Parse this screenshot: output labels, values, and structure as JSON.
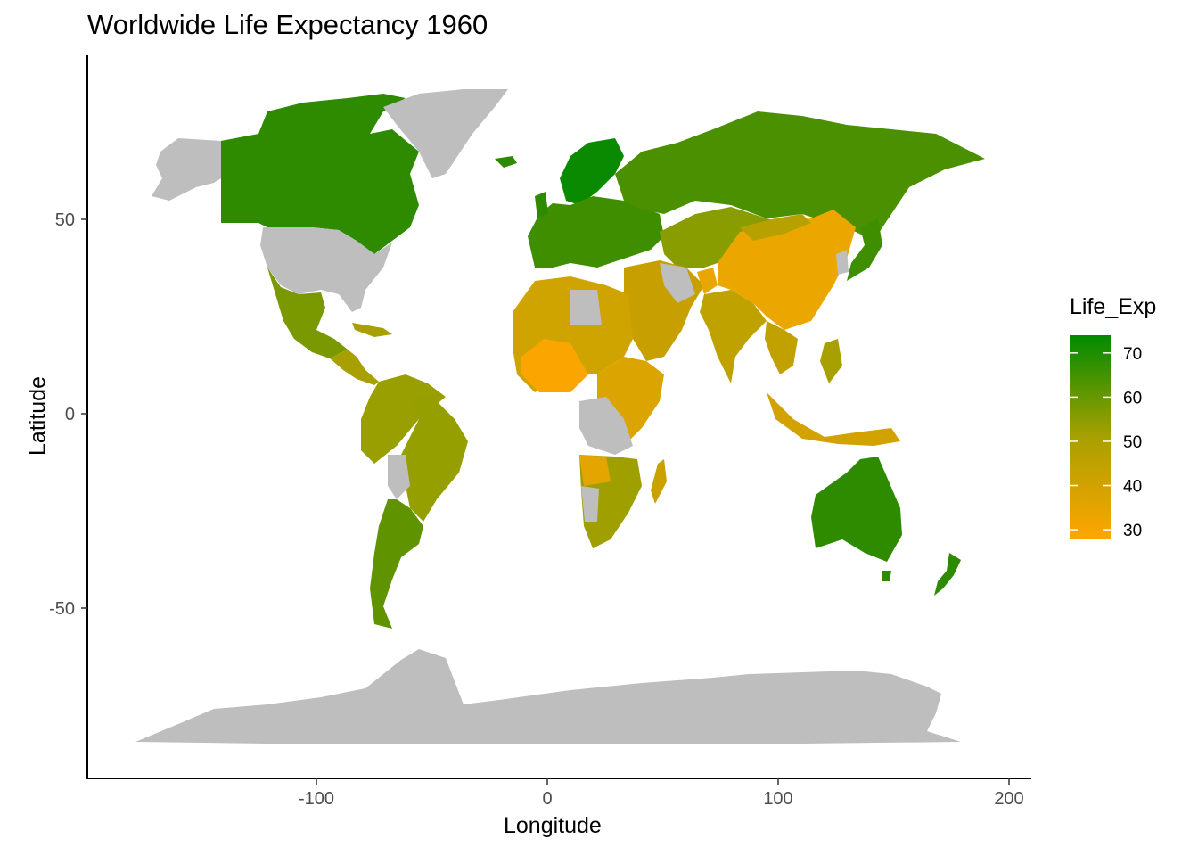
{
  "title": "Worldwide Life Expectancy 1960",
  "x_label": "Longitude",
  "y_label": "Latitude",
  "legend": {
    "title": "Life_Exp",
    "ticks": [
      "30",
      "40",
      "50",
      "60",
      "70"
    ],
    "range": [
      28,
      74
    ],
    "color_low": "#FFA500",
    "color_mid": "#A8A000",
    "color_high": "#008B00",
    "na_color": "#BEBEBE"
  },
  "axes": {
    "x_ticks": [
      "-100",
      "0",
      "100",
      "200"
    ],
    "y_ticks": [
      "50",
      "0",
      "-50"
    ],
    "xlim": [
      -197,
      206
    ],
    "ylim": [
      -94,
      92
    ]
  },
  "regions": [
    {
      "name": "Canada",
      "life_exp": 71
    },
    {
      "name": "United States",
      "life_exp": null
    },
    {
      "name": "Greenland",
      "life_exp": null
    },
    {
      "name": "Alaska",
      "life_exp": null
    },
    {
      "name": "Mexico",
      "life_exp": 57
    },
    {
      "name": "Central America",
      "life_exp": 50
    },
    {
      "name": "South America North",
      "life_exp": 52
    },
    {
      "name": "Brazil",
      "life_exp": 54
    },
    {
      "name": "Argentina",
      "life_exp": 65
    },
    {
      "name": "Scandinavia",
      "life_exp": 73
    },
    {
      "name": "Europe",
      "life_exp": 68
    },
    {
      "name": "Russia",
      "life_exp": 63
    },
    {
      "name": "Central Asia",
      "life_exp": 55
    },
    {
      "name": "China",
      "life_exp": 33
    },
    {
      "name": "India",
      "life_exp": 42
    },
    {
      "name": "Middle East",
      "life_exp": 45
    },
    {
      "name": "North Africa",
      "life_exp": 42
    },
    {
      "name": "West Africa",
      "life_exp": 36
    },
    {
      "name": "East Africa",
      "life_exp": 40
    },
    {
      "name": "Southern Africa",
      "life_exp": 50
    },
    {
      "name": "Southeast Asia",
      "life_exp": 45
    },
    {
      "name": "Indonesia",
      "life_exp": 43
    },
    {
      "name": "Japan",
      "life_exp": 68
    },
    {
      "name": "Australia",
      "life_exp": 71
    },
    {
      "name": "New Zealand",
      "life_exp": 71
    },
    {
      "name": "Antarctica",
      "life_exp": null
    }
  ]
}
